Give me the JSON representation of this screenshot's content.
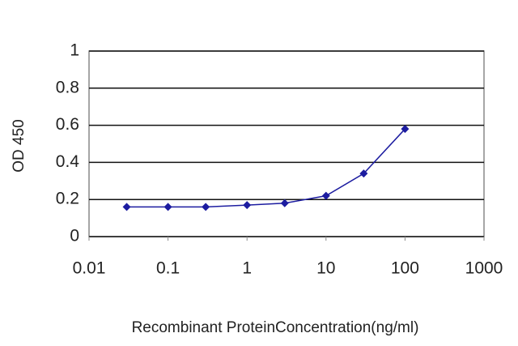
{
  "chart_data": {
    "type": "line",
    "xscale": "log",
    "marker": "diamond",
    "x_label": "Recombinant ProteinConcentration(ng/ml)",
    "y_label": "OD 450",
    "x": [
      0.03,
      0.1,
      0.3,
      1,
      3,
      10,
      30,
      100
    ],
    "series": [
      {
        "color": "#1c1ca0",
        "values": [
          0.16,
          0.16,
          0.16,
          0.17,
          0.18,
          0.22,
          0.34,
          0.58
        ]
      }
    ],
    "xlim": [
      0.01,
      1000
    ],
    "xticks": [
      0.01,
      0.1,
      1,
      10,
      100,
      1000
    ],
    "ylim": [
      0,
      1
    ],
    "yticks": [
      0,
      0.2,
      0.4,
      0.6,
      0.8,
      1
    ],
    "grid": true
  }
}
